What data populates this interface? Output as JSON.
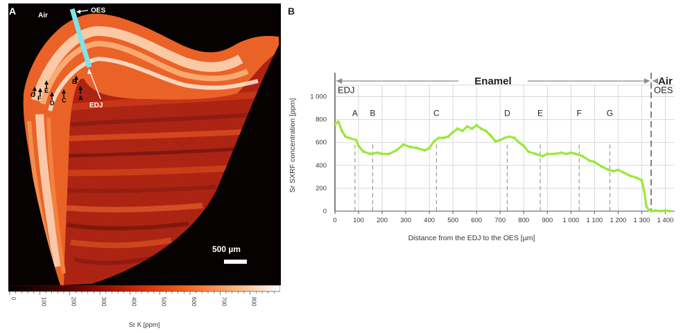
{
  "panel_a": {
    "letter": "A",
    "labels": {
      "air": "Air",
      "oes": "OES",
      "edj": "EDJ"
    },
    "points": [
      "G",
      "E",
      "F",
      "D",
      "C",
      "B",
      "A"
    ],
    "scale_bar": "500 µm",
    "colorbar": {
      "ticks": [
        "0",
        "100",
        "200",
        "300",
        "400",
        "500",
        "600",
        "700",
        "800"
      ],
      "label": "Sr K  [ppm]",
      "stops": [
        "#000000",
        "#3b0000",
        "#8b0a02",
        "#d52f09",
        "#f26a26",
        "#fbb27a",
        "#ffffff"
      ]
    },
    "colors": {
      "transect": "#7fe3ea"
    }
  },
  "panel_b": {
    "letter": "B",
    "region_labels": {
      "enamel": "Enamel",
      "air": "Air"
    },
    "line_labels": {
      "edj": "EDJ",
      "oes": "OES"
    },
    "colors": {
      "line": "#9ae83c",
      "grid": "#d9d9d9"
    }
  },
  "chart_data": {
    "type": "line",
    "xlabel": "Distance from the EDJ to the OES [µm]",
    "ylabel": "Sr SXRF concentration [ppm]",
    "xlim": [
      0,
      1440
    ],
    "ylim": [
      0,
      1100
    ],
    "xticks": [
      0,
      100,
      200,
      300,
      400,
      500,
      600,
      700,
      800,
      900,
      1000,
      1100,
      1200,
      1300,
      1400
    ],
    "xtick_labels": [
      "0",
      "100",
      "200",
      "300",
      "400",
      "500",
      "600",
      "700",
      "800",
      "900",
      "1 000",
      "1 100",
      "1 200",
      "1 300",
      "1 400"
    ],
    "yticks": [
      0,
      200,
      400,
      600,
      800,
      1000
    ],
    "ytick_labels": [
      "0",
      "200",
      "400",
      "600",
      "800",
      "1 000"
    ],
    "x": [
      0,
      15,
      30,
      45,
      60,
      90,
      100,
      120,
      150,
      180,
      200,
      230,
      260,
      290,
      320,
      350,
      380,
      400,
      420,
      440,
      460,
      480,
      500,
      520,
      540,
      560,
      580,
      600,
      620,
      640,
      660,
      680,
      700,
      720,
      740,
      760,
      780,
      800,
      820,
      850,
      880,
      900,
      930,
      960,
      980,
      1000,
      1020,
      1050,
      1080,
      1100,
      1130,
      1160,
      1180,
      1200,
      1220,
      1250,
      1280,
      1300,
      1310,
      1320,
      1330,
      1340,
      1360,
      1380,
      1400,
      1420
    ],
    "y": [
      760,
      780,
      700,
      650,
      640,
      620,
      570,
      520,
      500,
      510,
      500,
      500,
      530,
      580,
      560,
      550,
      530,
      550,
      610,
      640,
      640,
      650,
      690,
      720,
      700,
      740,
      720,
      750,
      720,
      700,
      660,
      610,
      620,
      640,
      650,
      640,
      600,
      570,
      520,
      500,
      480,
      500,
      500,
      510,
      500,
      510,
      500,
      480,
      440,
      430,
      390,
      360,
      350,
      360,
      340,
      310,
      290,
      270,
      180,
      40,
      10,
      0,
      5,
      0,
      5,
      0
    ],
    "reference_lines": [
      {
        "label": "A",
        "x": 85
      },
      {
        "label": "B",
        "x": 160
      },
      {
        "label": "C",
        "x": 430
      },
      {
        "label": "D",
        "x": 730
      },
      {
        "label": "E",
        "x": 870
      },
      {
        "label": "F",
        "x": 1035
      },
      {
        "label": "G",
        "x": 1165
      }
    ],
    "boundaries": {
      "edj": 0,
      "oes": 1340
    },
    "grid": true
  }
}
